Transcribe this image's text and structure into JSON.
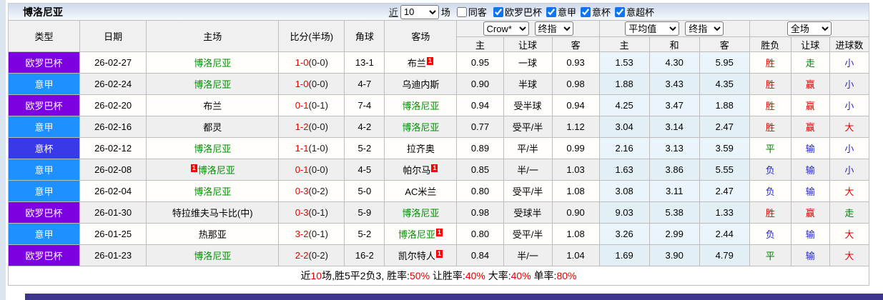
{
  "header": {
    "team_name": "博洛尼亚",
    "recent_prefix": "近",
    "recent_value": "10",
    "recent_suffix": "场",
    "same_away_label": "同客",
    "same_away_checked": false,
    "leagues_filter": [
      {
        "label": "欧罗巴杯",
        "checked": true
      },
      {
        "label": "意甲",
        "checked": true
      },
      {
        "label": "意杯",
        "checked": true
      },
      {
        "label": "意超杯",
        "checked": true
      }
    ]
  },
  "selectors": {
    "odds_source": "Crow*",
    "odds_stage1": "终指",
    "euro_source": "平均值",
    "odds_stage2": "终指",
    "scope": "全场"
  },
  "columns": {
    "left": [
      "类型",
      "日期",
      "主场",
      "比分(半场)",
      "角球",
      "客场"
    ],
    "right": [
      "主",
      "让球",
      "客",
      "主",
      "和",
      "客",
      "胜负",
      "让球",
      "进球数"
    ]
  },
  "colors": {
    "league": {
      "欧罗巴杯": "#7d00e0",
      "意甲": "#1e90ff",
      "意杯": "#3939e8"
    },
    "values": {
      "胜": "#e60000",
      "平": "#008000",
      "负": "#2626cf",
      "赢": "#e60000",
      "输": "#2626cf",
      "走": "#008000",
      "大": "#e60000",
      "小": "#2626cf"
    },
    "team_highlight": "#009100",
    "divider": "#3d358b"
  },
  "rows": [
    {
      "league": "欧罗巴杯",
      "date": "26-02-27",
      "home": {
        "name": "博洛尼亚"
      },
      "score_ft": "1-0",
      "score_ht": "(0-0)",
      "corner": "13-1",
      "away": {
        "name": "布兰",
        "card_after": "1"
      },
      "asia_home": "0.95",
      "handicap": "一球",
      "asia_away": "0.93",
      "euro_home": "1.53",
      "euro_draw": "4.30",
      "euro_away": "5.95",
      "res_wl": "胜",
      "res_handicap": "走",
      "res_goals": "小"
    },
    {
      "league": "意甲",
      "date": "26-02-24",
      "home": {
        "name": "博洛尼亚"
      },
      "score_ft": "1-0",
      "score_ht": "(0-0)",
      "corner": "4-7",
      "away": {
        "name": "乌迪内斯"
      },
      "asia_home": "0.90",
      "handicap": "半球",
      "asia_away": "0.98",
      "euro_home": "1.88",
      "euro_draw": "3.43",
      "euro_away": "4.35",
      "res_wl": "胜",
      "res_handicap": "赢",
      "res_goals": "小"
    },
    {
      "league": "欧罗巴杯",
      "date": "26-02-20",
      "home": {
        "name": "布兰"
      },
      "score_ft": "0-1",
      "score_ht": "(0-1)",
      "corner": "7-4",
      "away": {
        "name": "博洛尼亚"
      },
      "asia_home": "0.94",
      "handicap": "受半球",
      "asia_away": "0.94",
      "euro_home": "4.25",
      "euro_draw": "3.47",
      "euro_away": "1.88",
      "res_wl": "胜",
      "res_handicap": "赢",
      "res_goals": "小"
    },
    {
      "league": "意甲",
      "date": "26-02-16",
      "home": {
        "name": "都灵"
      },
      "score_ft": "1-2",
      "score_ht": "(0-0)",
      "corner": "4-2",
      "away": {
        "name": "博洛尼亚"
      },
      "asia_home": "0.77",
      "handicap": "受平/半",
      "asia_away": "1.12",
      "euro_home": "3.04",
      "euro_draw": "3.14",
      "euro_away": "2.47",
      "res_wl": "胜",
      "res_handicap": "赢",
      "res_goals": "大"
    },
    {
      "league": "意杯",
      "date": "26-02-12",
      "home": {
        "name": "博洛尼亚"
      },
      "score_ft": "1-1",
      "score_ht": "(1-0)",
      "corner": "5-2",
      "away": {
        "name": "拉齐奥"
      },
      "asia_home": "0.89",
      "handicap": "平/半",
      "asia_away": "0.99",
      "euro_home": "2.16",
      "euro_draw": "3.13",
      "euro_away": "3.59",
      "res_wl": "平",
      "res_handicap": "输",
      "res_goals": "小"
    },
    {
      "league": "意甲",
      "date": "26-02-08",
      "home": {
        "name": "博洛尼亚",
        "card_before": "1"
      },
      "score_ft": "0-1",
      "score_ht": "(0-0)",
      "corner": "4-5",
      "away": {
        "name": "帕尔马",
        "card_after": "1"
      },
      "asia_home": "0.85",
      "handicap": "半/一",
      "asia_away": "1.03",
      "euro_home": "1.63",
      "euro_draw": "3.86",
      "euro_away": "5.55",
      "res_wl": "负",
      "res_handicap": "输",
      "res_goals": "小"
    },
    {
      "league": "意甲",
      "date": "26-02-04",
      "home": {
        "name": "博洛尼亚"
      },
      "score_ft": "0-3",
      "score_ht": "(0-2)",
      "corner": "5-0",
      "away": {
        "name": "AC米兰"
      },
      "asia_home": "0.80",
      "handicap": "受平/半",
      "asia_away": "1.08",
      "euro_home": "3.08",
      "euro_draw": "3.11",
      "euro_away": "2.47",
      "res_wl": "负",
      "res_handicap": "输",
      "res_goals": "大"
    },
    {
      "league": "欧罗巴杯",
      "date": "26-01-30",
      "home": {
        "name": "特拉维夫马卡比(中)"
      },
      "score_ft": "0-3",
      "score_ht": "(0-1)",
      "corner": "5-9",
      "away": {
        "name": "博洛尼亚"
      },
      "asia_home": "0.98",
      "handicap": "受球半",
      "asia_away": "0.90",
      "euro_home": "9.03",
      "euro_draw": "5.38",
      "euro_away": "1.33",
      "res_wl": "胜",
      "res_handicap": "赢",
      "res_goals": "走"
    },
    {
      "league": "意甲",
      "date": "26-01-25",
      "home": {
        "name": "热那亚"
      },
      "score_ft": "3-2",
      "score_ht": "(0-1)",
      "corner": "5-2",
      "away": {
        "name": "博洛尼亚",
        "card_after": "1"
      },
      "asia_home": "0.80",
      "handicap": "受平/半",
      "asia_away": "1.08",
      "euro_home": "3.26",
      "euro_draw": "2.99",
      "euro_away": "2.44",
      "res_wl": "负",
      "res_handicap": "输",
      "res_goals": "大"
    },
    {
      "league": "欧罗巴杯",
      "date": "26-01-23",
      "home": {
        "name": "博洛尼亚"
      },
      "score_ft": "2-2",
      "score_ht": "(0-2)",
      "corner": "16-2",
      "away": {
        "name": "凯尔特人",
        "card_after": "1"
      },
      "asia_home": "0.84",
      "handicap": "半/一",
      "asia_away": "1.04",
      "euro_home": "1.69",
      "euro_draw": "3.90",
      "euro_away": "4.79",
      "res_wl": "平",
      "res_handicap": "输",
      "res_goals": "大"
    }
  ],
  "footer": {
    "segments": [
      {
        "text": "近",
        "color": "#000000"
      },
      {
        "text": "10",
        "color": "#e60000"
      },
      {
        "text": "场,胜5平2负3, 胜率:",
        "color": "#000000"
      },
      {
        "text": "50%",
        "color": "#e60000"
      },
      {
        "text": " 让胜率:",
        "color": "#000000"
      },
      {
        "text": "40%",
        "color": "#e60000"
      },
      {
        "text": " 大率:",
        "color": "#000000"
      },
      {
        "text": "40%",
        "color": "#e60000"
      },
      {
        "text": " 单率:",
        "color": "#000000"
      },
      {
        "text": "80%",
        "color": "#e60000"
      }
    ]
  }
}
